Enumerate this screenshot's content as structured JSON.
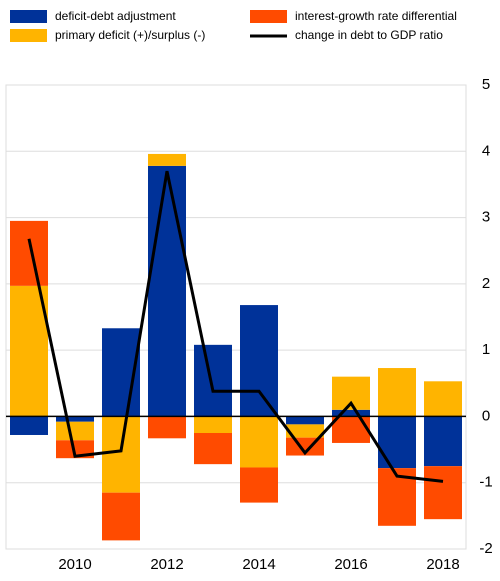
{
  "chart_data": {
    "type": "bar",
    "categories": [
      null,
      "2010",
      null,
      "2012",
      null,
      "2014",
      null,
      "2016",
      null,
      "2018"
    ],
    "series": [
      {
        "name": "deficit-debt adjustment",
        "color": "#003299",
        "values": [
          -0.28,
          -0.08,
          1.33,
          3.78,
          1.08,
          1.68,
          -0.12,
          0.1,
          -0.78,
          -0.75
        ]
      },
      {
        "name": "primary deficit (+)/surplus (-)",
        "color": "#ffb400",
        "values": [
          1.97,
          -0.28,
          -1.15,
          0.18,
          -0.25,
          -0.77,
          -0.2,
          0.5,
          0.73,
          0.53
        ]
      },
      {
        "name": "interest-growth rate differential",
        "color": "#ff4b00",
        "values": [
          0.98,
          -0.27,
          -0.72,
          -0.33,
          -0.47,
          -0.53,
          -0.27,
          -0.4,
          -0.87,
          -0.8
        ]
      },
      {
        "name": "change in debt to GDP ratio",
        "color": "#000000",
        "type": "line",
        "values": [
          2.68,
          -0.6,
          -0.52,
          3.7,
          0.38,
          0.38,
          -0.55,
          0.2,
          -0.9,
          -0.98
        ]
      }
    ],
    "ylim": [
      -2,
      5
    ],
    "yticks": [
      -2,
      -1,
      0,
      1,
      2,
      3,
      4,
      5
    ],
    "grid": true
  }
}
